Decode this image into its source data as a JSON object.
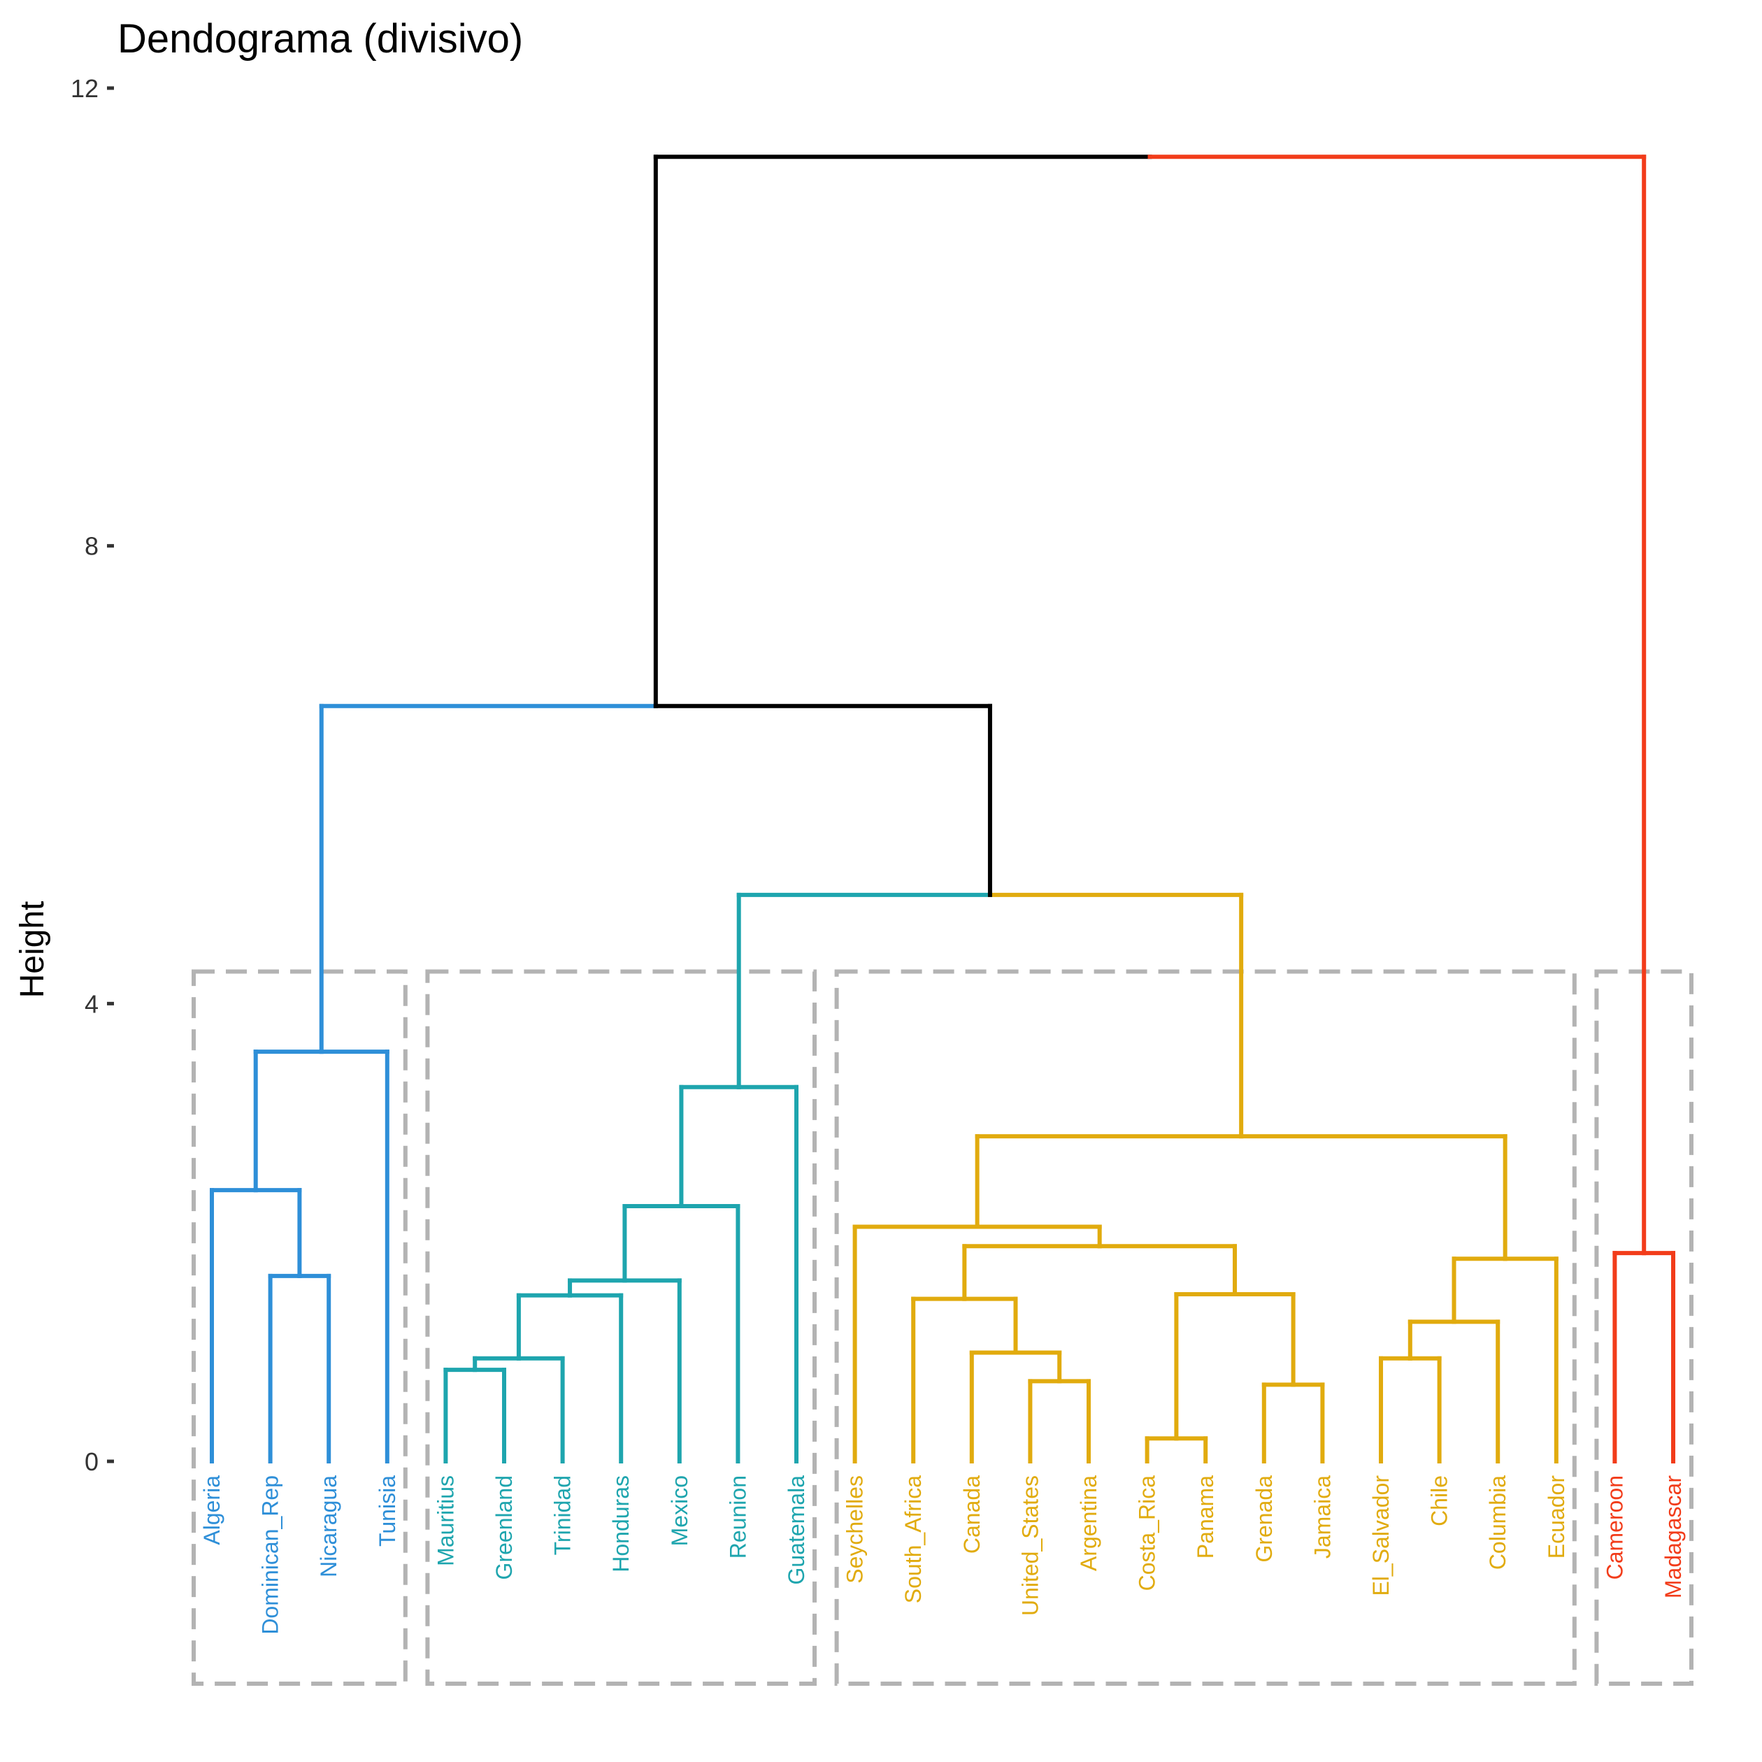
{
  "chart_data": {
    "type": "dendrogram",
    "title": "Dendograma (divisivo)",
    "ylabel": "Height",
    "xlabel": "",
    "ylim": [
      0,
      12
    ],
    "yticks": [
      0,
      4,
      8,
      12
    ],
    "grid": false,
    "root_color": "#000000",
    "box_color": "#b3b3b3",
    "clusters": [
      {
        "color": "#2e8fd8",
        "leaves": [
          "Algeria",
          "Dominican_Rep",
          "Nicaragua",
          "Tunisia"
        ]
      },
      {
        "color": "#1ea5ae",
        "leaves": [
          "Mauritius",
          "Greenland",
          "Trinidad",
          "Honduras",
          "Mexico",
          "Reunion",
          "Guatemala"
        ]
      },
      {
        "color": "#e1ab0e",
        "leaves": [
          "Seychelles",
          "South_Africa",
          "Canada",
          "United_States",
          "Argentina",
          "Costa_Rica",
          "Panama",
          "Grenada",
          "Jamaica",
          "El_Salvador",
          "Chile",
          "Columbia",
          "Ecuador"
        ]
      },
      {
        "color": "#f23c1a",
        "leaves": [
          "Cameroon",
          "Madagascar"
        ]
      }
    ],
    "merges": [
      {
        "left": "Dominican_Rep",
        "right": "Nicaragua",
        "height": 1.62,
        "cluster": 0
      },
      {
        "left": "Algeria",
        "right": 0,
        "height": 2.37,
        "cluster": 0
      },
      {
        "left": 1,
        "right": "Tunisia",
        "height": 3.58,
        "cluster": 0
      },
      {
        "left": "Mauritius",
        "right": "Greenland",
        "height": 0.8,
        "cluster": 1
      },
      {
        "left": 3,
        "right": "Trinidad",
        "height": 0.9,
        "cluster": 1
      },
      {
        "left": 4,
        "right": "Honduras",
        "height": 1.45,
        "cluster": 1
      },
      {
        "left": 5,
        "right": "Mexico",
        "height": 1.58,
        "cluster": 1
      },
      {
        "left": 6,
        "right": "Reunion",
        "height": 2.23,
        "cluster": 1
      },
      {
        "left": 7,
        "right": "Guatemala",
        "height": 3.27,
        "cluster": 1
      },
      {
        "left": "United_States",
        "right": "Argentina",
        "height": 0.7,
        "cluster": 2
      },
      {
        "left": "Canada",
        "right": 9,
        "height": 0.95,
        "cluster": 2
      },
      {
        "left": "South_Africa",
        "right": 10,
        "height": 1.42,
        "cluster": 2
      },
      {
        "left": "Costa_Rica",
        "right": "Panama",
        "height": 0.2,
        "cluster": 2
      },
      {
        "left": "Grenada",
        "right": "Jamaica",
        "height": 0.67,
        "cluster": 2
      },
      {
        "left": 12,
        "right": 13,
        "height": 1.46,
        "cluster": 2
      },
      {
        "left": 11,
        "right": 14,
        "height": 1.88,
        "cluster": 2
      },
      {
        "left": "Seychelles",
        "right": 15,
        "height": 2.05,
        "cluster": 2
      },
      {
        "left": "El_Salvador",
        "right": "Chile",
        "height": 0.9,
        "cluster": 2
      },
      {
        "left": 17,
        "right": "Columbia",
        "height": 1.22,
        "cluster": 2
      },
      {
        "left": 18,
        "right": "Ecuador",
        "height": 1.77,
        "cluster": 2
      },
      {
        "left": 16,
        "right": 19,
        "height": 2.84,
        "cluster": 2
      },
      {
        "left": 8,
        "right": 20,
        "height": 4.95,
        "cluster": 1,
        "right_cluster": 2
      },
      {
        "left": 2,
        "right": 21,
        "height": 6.6,
        "cluster": 0,
        "right_cluster": "root"
      },
      {
        "left": "Cameroon",
        "right": "Madagascar",
        "height": 1.82,
        "cluster": 3
      },
      {
        "left": 22,
        "right": 23,
        "height": 11.4,
        "cluster": "root",
        "right_cluster": 3
      }
    ]
  }
}
